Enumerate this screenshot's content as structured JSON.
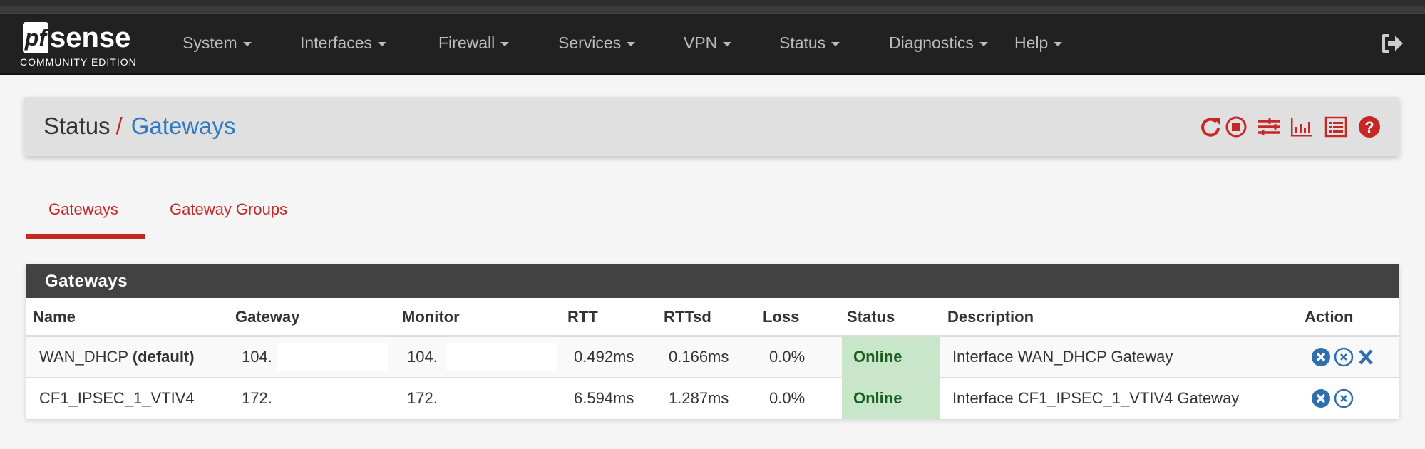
{
  "brand": {
    "logo_text": "pfsense",
    "edition": "COMMUNITY EDITION"
  },
  "nav": {
    "items": [
      "System",
      "Interfaces",
      "Firewall",
      "Services",
      "VPN",
      "Status",
      "Diagnostics",
      "Help"
    ]
  },
  "breadcrumb": {
    "parent": "Status",
    "separator": "/",
    "current": "Gateways"
  },
  "toolbar_icons": [
    "refresh-icon",
    "stop-icon",
    "sliders-icon",
    "bar-chart-icon",
    "list-icon",
    "help-icon"
  ],
  "tabs": [
    {
      "label": "Gateways",
      "active": true
    },
    {
      "label": "Gateway Groups",
      "active": false
    }
  ],
  "panel": {
    "title": "Gateways",
    "columns": [
      "Name",
      "Gateway",
      "Monitor",
      "RTT",
      "RTTsd",
      "Loss",
      "Status",
      "Description",
      "Action"
    ],
    "rows": [
      {
        "name": "WAN_DHCP",
        "name_suffix": "(default)",
        "gateway": "104.",
        "monitor": "104.",
        "rtt": "0.492ms",
        "rttsd": "0.166ms",
        "loss": "0.0%",
        "status": "Online",
        "description": "Interface WAN_DHCP Gateway",
        "actions": [
          "kill-states",
          "disable",
          "delete"
        ]
      },
      {
        "name": "CF1_IPSEC_1_VTIV4",
        "name_suffix": "",
        "gateway": "172.",
        "monitor": "172.",
        "rtt": "6.594ms",
        "rttsd": "1.287ms",
        "loss": "0.0%",
        "status": "Online",
        "description": "Interface CF1_IPSEC_1_VTIV4 Gateway",
        "actions": [
          "kill-states",
          "disable"
        ]
      }
    ]
  },
  "colors": {
    "accent_red": "#c62828",
    "link_blue": "#2f7bc2",
    "online_bg": "#c8e6c9",
    "online_text": "#1b5e20",
    "navbar": "#212121"
  }
}
